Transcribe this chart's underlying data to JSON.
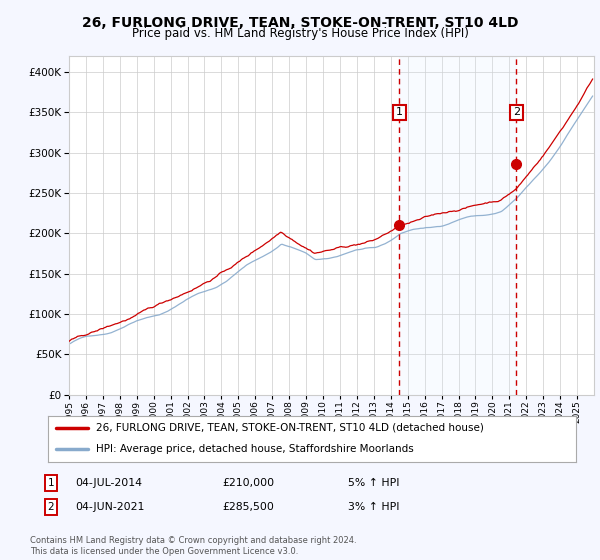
{
  "title": "26, FURLONG DRIVE, TEAN, STOKE-ON-TRENT, ST10 4LD",
  "subtitle": "Price paid vs. HM Land Registry's House Price Index (HPI)",
  "ylim": [
    0,
    420000
  ],
  "xlim_start": 1995,
  "xlim_end": 2026,
  "purchase1_date": "04-JUL-2014",
  "purchase1_price": 210000,
  "purchase1_pct": "5%",
  "purchase1_year": 2014,
  "purchase1_month": 7,
  "purchase2_date": "04-JUN-2021",
  "purchase2_price": 285500,
  "purchase2_pct": "3%",
  "purchase2_year": 2021,
  "purchase2_month": 6,
  "line_red_color": "#cc0000",
  "line_blue_color": "#88aacc",
  "vline_color": "#cc0000",
  "shade_color": "#ddeeff",
  "legend_line1": "26, FURLONG DRIVE, TEAN, STOKE-ON-TRENT, ST10 4LD (detached house)",
  "legend_line2": "HPI: Average price, detached house, Staffordshire Moorlands",
  "footer": "Contains HM Land Registry data © Crown copyright and database right 2024.\nThis data is licensed under the Open Government Licence v3.0.",
  "bg_color": "#f5f7ff",
  "plot_bg": "#ffffff",
  "grid_color": "#cccccc",
  "box_edge_color": "#cc0000"
}
